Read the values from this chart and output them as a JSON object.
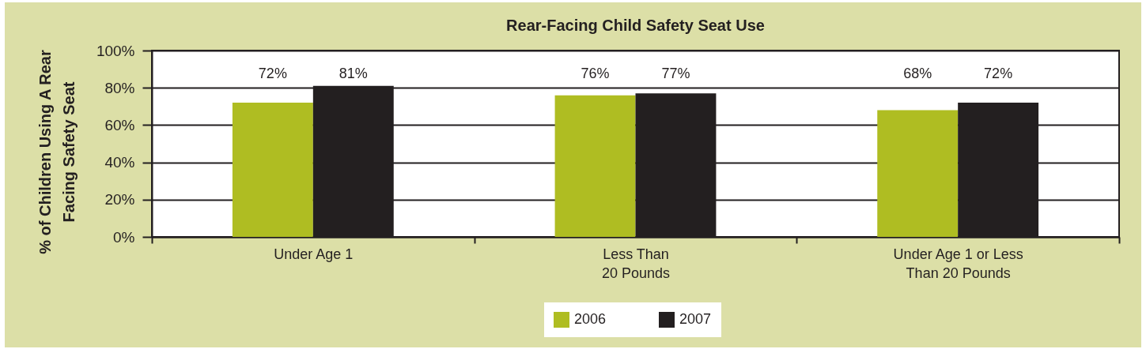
{
  "chart_data": {
    "type": "bar",
    "title": "Rear-Facing Child Safety Seat Use",
    "ylabel": "% of Children Using A Rear\nFacing Safety Seat",
    "categories": [
      "Under Age 1",
      "Less Than\n20 Pounds",
      "Under Age 1 or Less\nThan 20 Pounds"
    ],
    "series": [
      {
        "name": "2006",
        "color": "#afbd22",
        "values": [
          72,
          76,
          68
        ],
        "value_labels": [
          "72%",
          "76%",
          "68%"
        ]
      },
      {
        "name": "2007",
        "color": "#231f20",
        "values": [
          81,
          77,
          72
        ],
        "value_labels": [
          "81%",
          "77%",
          "72%"
        ]
      }
    ],
    "ylim": [
      0,
      100
    ],
    "yticks": [
      {
        "value": 0,
        "label": "0%"
      },
      {
        "value": 20,
        "label": "20%"
      },
      {
        "value": 40,
        "label": "40%"
      },
      {
        "value": 60,
        "label": "60%"
      },
      {
        "value": 80,
        "label": "80%"
      },
      {
        "value": 100,
        "label": "100%"
      }
    ],
    "grid": "y",
    "legend": "bottom"
  }
}
